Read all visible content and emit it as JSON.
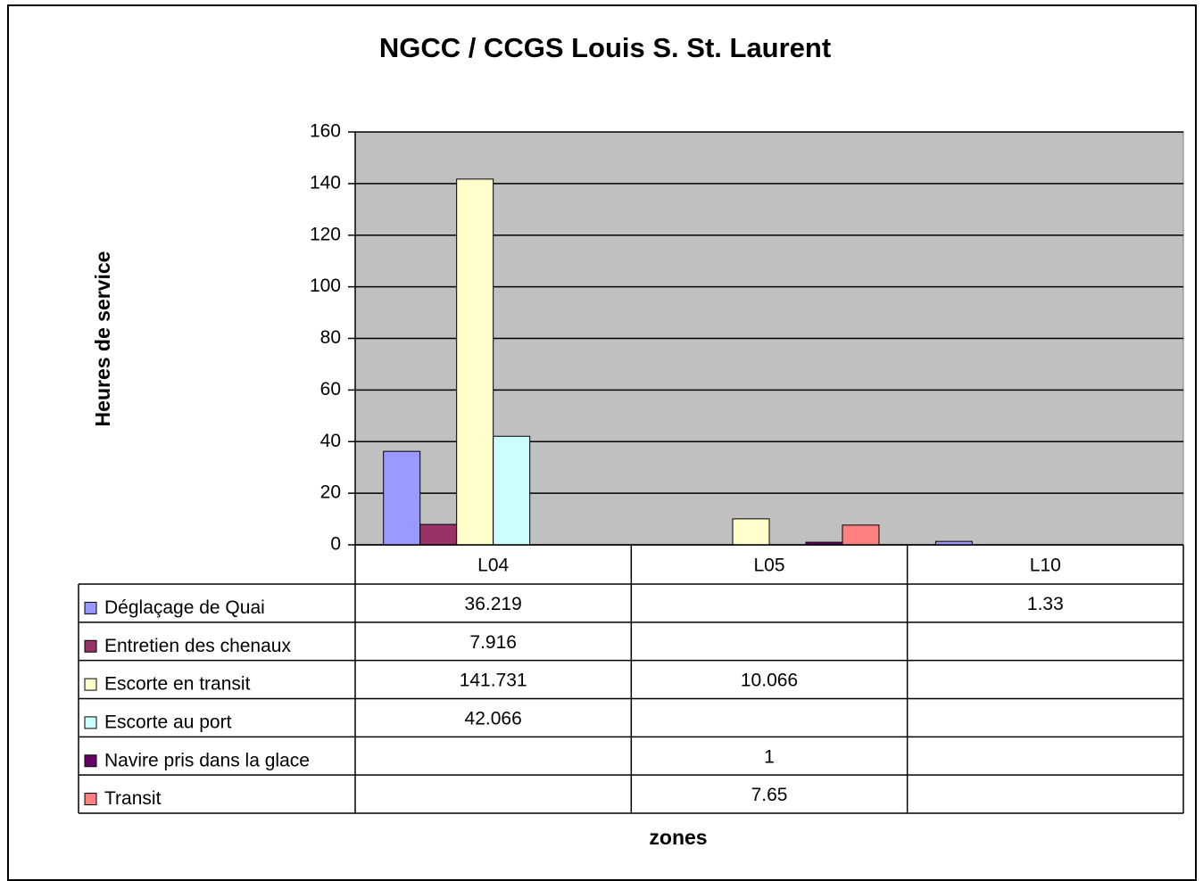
{
  "chart_data": {
    "type": "bar",
    "title": "NGCC / CCGS Louis S. St. Laurent",
    "y_label": "Heures de service",
    "x_label": "zones",
    "categories": [
      "L04",
      "L05",
      "L10"
    ],
    "series": [
      {
        "name": "Déglaçage de Quai",
        "color": "#9999ff",
        "values": [
          36.219,
          null,
          1.33
        ]
      },
      {
        "name": "Entretien des chenaux",
        "color": "#993366",
        "values": [
          7.916,
          null,
          null
        ]
      },
      {
        "name": "Escorte en transit",
        "color": "#ffffcc",
        "values": [
          141.731,
          10.066,
          null
        ]
      },
      {
        "name": "Escorte au port",
        "color": "#ccffff",
        "values": [
          42.066,
          null,
          null
        ]
      },
      {
        "name": "Navire pris dans la glace",
        "color": "#660066",
        "values": [
          null,
          1,
          null
        ]
      },
      {
        "name": "Transit",
        "color": "#ff8080",
        "values": [
          null,
          7.65,
          null
        ]
      }
    ],
    "ylim": [
      0,
      160
    ],
    "yticks": [
      0,
      20,
      40,
      60,
      80,
      100,
      120,
      140,
      160
    ],
    "grid": true,
    "plot_background": "#c0c0c0"
  }
}
